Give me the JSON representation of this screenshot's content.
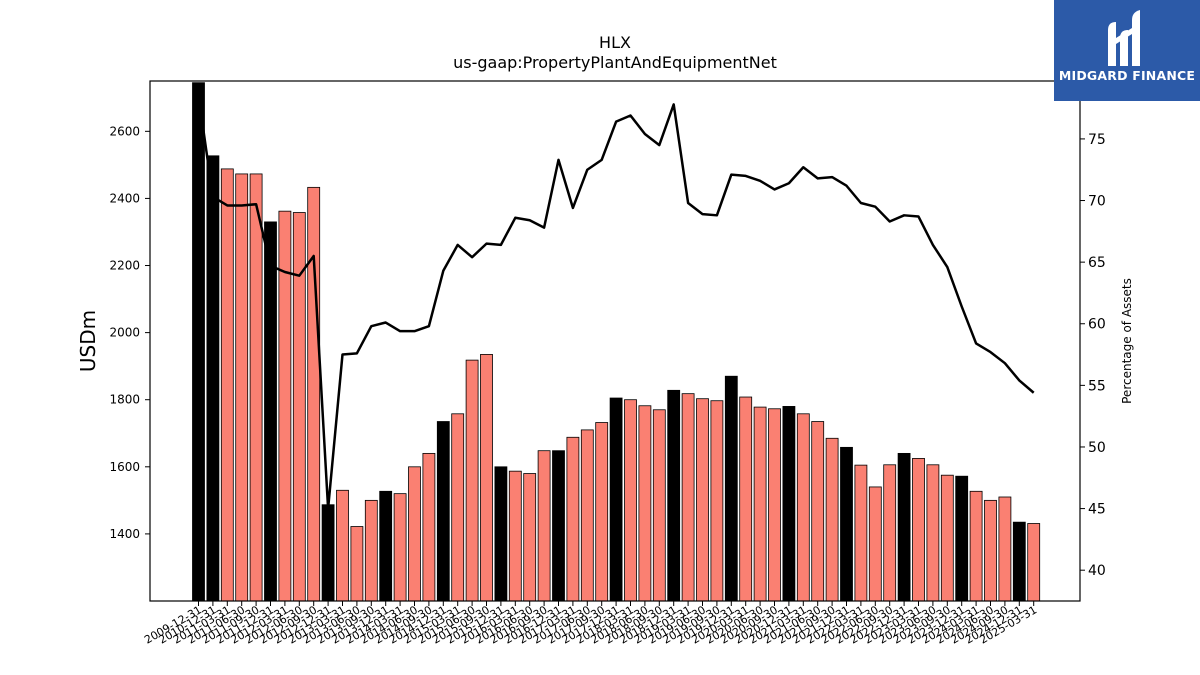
{
  "chart_data": {
    "type": "bar",
    "title": "HLX",
    "subtitle": "us-gaap:PropertyPlantAndEquipmentNet",
    "ylabel": "USDm",
    "y2label": "Percentage of Assets",
    "ylim": [
      1200,
      2750
    ],
    "y2lim": [
      37.5,
      79.7
    ],
    "yticks": [
      1400,
      1600,
      1800,
      2000,
      2200,
      2400,
      2600
    ],
    "y2ticks": [
      40,
      45,
      50,
      55,
      60,
      65,
      70,
      75
    ],
    "colors": {
      "annual": "#000000",
      "quarterly": "#fa8072",
      "line": "#000000"
    },
    "categories": [
      "2009-12-31",
      "2010-12-31",
      "2011-03-31",
      "2011-06-30",
      "2011-09-30",
      "2011-12-31",
      "2012-03-31",
      "2012-06-30",
      "2012-09-30",
      "2012-12-31",
      "2013-03-31",
      "2013-06-30",
      "2013-09-30",
      "2013-12-31",
      "2014-03-31",
      "2014-06-30",
      "2014-09-30",
      "2014-12-31",
      "2015-03-31",
      "2015-06-30",
      "2015-09-30",
      "2015-12-31",
      "2016-03-31",
      "2016-06-30",
      "2016-09-30",
      "2016-12-31",
      "2017-03-31",
      "2017-06-30",
      "2017-09-30",
      "2017-12-31",
      "2018-03-31",
      "2018-06-30",
      "2018-09-30",
      "2018-12-31",
      "2019-03-31",
      "2019-06-30",
      "2019-09-30",
      "2019-12-31",
      "2020-03-31",
      "2020-06-30",
      "2020-09-30",
      "2020-12-31",
      "2021-03-31",
      "2021-06-30",
      "2021-09-30",
      "2021-12-31",
      "2022-03-31",
      "2022-06-30",
      "2022-09-30",
      "2022-12-31",
      "2023-03-31",
      "2023-06-30",
      "2023-09-30",
      "2023-12-31",
      "2024-03-31",
      "2024-06-30",
      "2024-09-30",
      "2024-12-31",
      "2025-03-31"
    ],
    "series": [
      {
        "values": [
          2745,
          2527,
          2488,
          2473,
          2473,
          2330,
          2362,
          2358,
          2433,
          1487,
          1530,
          1422,
          1500,
          1527,
          1520,
          1600,
          1640,
          1735,
          1758,
          1918,
          1935,
          1600,
          1587,
          1580,
          1648,
          1648,
          1688,
          1710,
          1732,
          1805,
          1800,
          1782,
          1770,
          1828,
          1818,
          1803,
          1797,
          1870,
          1808,
          1778,
          1773,
          1780,
          1758,
          1735,
          1685,
          1658,
          1605,
          1540,
          1606,
          1640,
          1625,
          1606,
          1575,
          1572,
          1527,
          1500,
          1510,
          1435,
          1431
        ],
        "annual": [
          true,
          true,
          false,
          false,
          false,
          true,
          false,
          false,
          false,
          true,
          false,
          false,
          false,
          true,
          false,
          false,
          false,
          true,
          false,
          false,
          false,
          true,
          false,
          false,
          false,
          true,
          false,
          false,
          false,
          true,
          false,
          false,
          false,
          true,
          false,
          false,
          false,
          true,
          false,
          false,
          false,
          true,
          false,
          false,
          false,
          true,
          false,
          false,
          false,
          true,
          false,
          false,
          false,
          true,
          false,
          false,
          false,
          true,
          false
        ]
      },
      {
        "values": [
          78.5,
          70.3,
          69.6,
          69.6,
          69.7,
          64.7,
          64.2,
          63.9,
          65.5,
          45.0,
          57.5,
          57.6,
          59.8,
          60.1,
          59.4,
          59.4,
          59.8,
          64.3,
          66.4,
          65.4,
          66.5,
          66.4,
          68.6,
          68.4,
          67.8,
          73.3,
          69.4,
          72.5,
          73.3,
          76.4,
          76.9,
          75.4,
          74.5,
          77.8,
          69.8,
          68.9,
          68.8,
          72.1,
          72.0,
          71.6,
          70.9,
          71.4,
          72.7,
          71.8,
          71.9,
          71.2,
          69.8,
          69.5,
          68.3,
          68.8,
          68.7,
          66.4,
          64.6,
          61.4,
          58.4,
          57.7,
          56.8,
          55.4,
          54.4
        ]
      }
    ],
    "legend": "none",
    "grid": false
  },
  "brand": {
    "name": "MIDGARD FINANCE",
    "color": "#2c5aa8"
  }
}
